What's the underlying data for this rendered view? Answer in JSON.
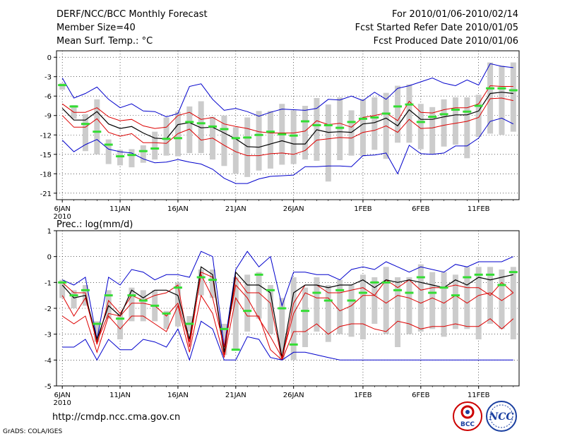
{
  "header": {
    "title": "DERF/NCC/BCC Monthly Forecast",
    "member_size": "Member Size=40",
    "variable": "Mean Surf. Temp.: °C",
    "period": "For 2010/01/06-2010/02/14",
    "fcst_started": "Fcst Started Refer Date 2010/01/05",
    "fcst_produced": "Fcst Produced Date 2010/01/06"
  },
  "footer": {
    "url": "http://cmdp.ncc.cma.gov.cn",
    "grads_credit": "GrADS: COLA/IGES",
    "logo_bcc_text": "BCC",
    "logo_ncc_text": "NCC"
  },
  "colors": {
    "envelope": "#0000cc",
    "spread": "#dd0000",
    "mean": "#000000",
    "observed": "#33dd33",
    "box": "#cccccc"
  },
  "chart_data": [
    {
      "type": "line",
      "title": "Mean Surf. Temp.: °C",
      "x_labels": [
        {
          "day": 1,
          "label": "6JAN"
        },
        {
          "day": 6,
          "label": "11JAN"
        },
        {
          "day": 11,
          "label": "16JAN"
        },
        {
          "day": 16,
          "label": "21JAN"
        },
        {
          "day": 21,
          "label": "26JAN"
        },
        {
          "day": 27,
          "label": "1FEB"
        },
        {
          "day": 32,
          "label": "6FEB"
        },
        {
          "day": 37,
          "label": "11FEB"
        }
      ],
      "year_label": "2010",
      "xlim": [
        0.5,
        40.5
      ],
      "ylim": [
        -22,
        1
      ],
      "yticks": [
        0,
        -3,
        -6,
        -9,
        -12,
        -15,
        -18,
        -21
      ],
      "ytick_labels": [
        "0",
        "-3",
        "-6",
        "-9",
        "-12",
        "-15",
        "-18",
        "-21"
      ],
      "series": [
        {
          "name": "max",
          "color_key": "envelope",
          "values": [
            -3.2,
            -6.3,
            -5.6,
            -4.6,
            -6.5,
            -7.8,
            -7.2,
            -8.3,
            -8.4,
            -9.2,
            -8.7,
            -4.5,
            -4.1,
            -6.5,
            -8.2,
            -7.9,
            -8.4,
            -9.1,
            -8.5,
            -8,
            -8.1,
            -8.2,
            -7.9,
            -6.5,
            -6.6,
            -6,
            -6.7,
            -5.4,
            -6.5,
            -4.8,
            -4.4,
            -3.8,
            -3.2,
            -4,
            -4.4,
            -3.5,
            -4.3,
            -1,
            -1.4,
            -1.6
          ]
        },
        {
          "name": "p_upper",
          "color_key": "spread",
          "values": [
            -7.2,
            -8.5,
            -8.5,
            -7.8,
            -9.2,
            -9.8,
            -9.6,
            -10.6,
            -11,
            -10.8,
            -9,
            -8.5,
            -9.6,
            -9.3,
            -10.3,
            -10.7,
            -11,
            -11.5,
            -11.7,
            -11.7,
            -11.7,
            -11.4,
            -9.8,
            -10.4,
            -10.2,
            -10.8,
            -9.3,
            -9,
            -8.6,
            -9.8,
            -6.8,
            -8.5,
            -8.6,
            -8.1,
            -7.8,
            -7.8,
            -7.2,
            -4.4,
            -4.5,
            -4.5
          ]
        },
        {
          "name": "mean",
          "color_key": "mean",
          "values": [
            -7.9,
            -9.7,
            -9.7,
            -8.4,
            -10.3,
            -11,
            -10.7,
            -11.7,
            -12.5,
            -12.6,
            -10.4,
            -10.1,
            -10.9,
            -10.8,
            -11.7,
            -12.6,
            -13.8,
            -13.9,
            -13.4,
            -12.9,
            -13.4,
            -13.4,
            -11.2,
            -11.6,
            -11.5,
            -11.6,
            -10.3,
            -10.1,
            -9.4,
            -10.6,
            -8.1,
            -9.6,
            -9.6,
            -9.2,
            -8.9,
            -8.9,
            -8.3,
            -5.6,
            -5.4,
            -5.6
          ]
        },
        {
          "name": "p_lower",
          "color_key": "spread",
          "values": [
            -9,
            -10.8,
            -10.8,
            -9.5,
            -11.6,
            -12.2,
            -11.8,
            -13.2,
            -13.2,
            -13.3,
            -11.8,
            -11.1,
            -12.8,
            -12.5,
            -13.6,
            -14.6,
            -15.2,
            -15.2,
            -14.9,
            -14.8,
            -15,
            -14.4,
            -12.8,
            -12.6,
            -12.4,
            -12.5,
            -11.6,
            -11.3,
            -10.6,
            -11.6,
            -9.6,
            -11,
            -10.9,
            -10.5,
            -10.2,
            -9.9,
            -9.3,
            -6.4,
            -6.3,
            -6.7
          ]
        },
        {
          "name": "min",
          "color_key": "envelope",
          "values": [
            -12.8,
            -14.6,
            -13.5,
            -12.7,
            -14.2,
            -14.6,
            -14.8,
            -15.7,
            -16.3,
            -16.2,
            -15.8,
            -16.2,
            -16.5,
            -17.3,
            -18.7,
            -19.5,
            -19.5,
            -18.8,
            -18.4,
            -18.3,
            -18.2,
            -16.9,
            -16.9,
            -16.8,
            -16.8,
            -16.9,
            -15.2,
            -15.1,
            -14.8,
            -18,
            -13.6,
            -14.9,
            -15,
            -14.8,
            -13.7,
            -13.7,
            -12.5,
            -9.9,
            -9.4,
            -10.3
          ]
        },
        {
          "name": "observed",
          "color_key": "observed",
          "values": [
            -4.3,
            -7.6,
            -10.3,
            -11.5,
            -13.5,
            -15.3,
            -15.1,
            -14.5,
            -14.1,
            -12.6,
            -12.5,
            -10,
            -10.2,
            -10.7,
            -11.1,
            -12.5,
            -12.4,
            -12,
            -11.5,
            -11.9,
            -12.1,
            -9.9,
            -10.5,
            -10.5,
            -10.9,
            -10,
            -9.5,
            -9.3,
            -8.7,
            -7.6,
            -7.3,
            -10,
            -9.2,
            -8.8,
            -8.1,
            -8.4,
            -7.5,
            -4.8,
            -4.8,
            -5.1
          ]
        }
      ],
      "boxes": {
        "low": [
          -5,
          -9.5,
          -14.5,
          -15,
          -16.5,
          -16.7,
          -17,
          -16.3,
          -15.8,
          -15.2,
          -15.3,
          -14.8,
          -14.8,
          -15.8,
          -16.8,
          -18,
          -18.5,
          -17.5,
          -17.2,
          -16.6,
          -16.5,
          -15.8,
          -16,
          -19.2,
          -15.9,
          -15.2,
          -15.3,
          -14.3,
          -15.7,
          -13.2,
          -13.2,
          -14.2,
          -15,
          -13.8,
          -13.5,
          -15.6,
          -12.3,
          -11.8,
          -12,
          -11.5
        ],
        "high": [
          -4,
          -7.4,
          -8.8,
          -6.5,
          -12.7,
          -14.3,
          -14.2,
          -13.6,
          -11.5,
          -9.3,
          -8.4,
          -7.6,
          -6.8,
          -9.2,
          -9,
          -10.8,
          -9.3,
          -8.3,
          -8.3,
          -7.2,
          -8.2,
          -7.5,
          -6.3,
          -7.3,
          -6.2,
          -8.2,
          -6.5,
          -6.2,
          -5.5,
          -4.4,
          -4.2,
          -7.2,
          -7.7,
          -6.5,
          -6.2,
          -6.2,
          -5.8,
          -0.8,
          -1.3,
          -0.8
        ]
      }
    },
    {
      "type": "line",
      "title": "Prec.: log(mm/d)",
      "x_labels": [
        {
          "day": 1,
          "label": "6JAN"
        },
        {
          "day": 6,
          "label": "11JAN"
        },
        {
          "day": 11,
          "label": "16JAN"
        },
        {
          "day": 16,
          "label": "21JAN"
        },
        {
          "day": 21,
          "label": "26JAN"
        },
        {
          "day": 27,
          "label": "1FEB"
        },
        {
          "day": 32,
          "label": "6FEB"
        },
        {
          "day": 37,
          "label": "11FEB"
        }
      ],
      "year_label": "2010",
      "xlim": [
        0.5,
        40.5
      ],
      "ylim": [
        -5,
        1
      ],
      "yticks": [
        1,
        0,
        -1,
        -2,
        -3,
        -4,
        -5
      ],
      "ytick_labels": [
        "1",
        "0",
        "-1",
        "-2",
        "-3",
        "-4",
        "-5"
      ],
      "series": [
        {
          "name": "max",
          "color_key": "envelope",
          "values": [
            -0.9,
            -1.1,
            -0.8,
            -3.2,
            -0.8,
            -1.1,
            -0.5,
            -0.6,
            -0.9,
            -0.7,
            -0.7,
            -0.8,
            0.2,
            0,
            -3.5,
            -0.5,
            0.2,
            -0.4,
            0,
            -1.9,
            -0.6,
            -0.6,
            -0.7,
            -0.7,
            -0.9,
            -0.5,
            -0.4,
            -0.5,
            -0.2,
            -0.4,
            -0.6,
            -0.4,
            -0.5,
            -0.6,
            -0.3,
            -0.4,
            -0.2,
            -0.2,
            -0.2,
            0
          ]
        },
        {
          "name": "p_upper",
          "color_key": "spread",
          "values": [
            -1,
            -1.4,
            -1.4,
            -3.4,
            -1.7,
            -2.2,
            -1.5,
            -1.7,
            -1.5,
            -1.4,
            -1.1,
            -3.5,
            -0.6,
            -0.8,
            -3.8,
            -0.8,
            -1.4,
            -1.4,
            -1.8,
            -4,
            -1.8,
            -1.1,
            -1.1,
            -1.4,
            -1.4,
            -1.3,
            -1.2,
            -1.5,
            -0.9,
            -1.2,
            -0.9,
            -1.3,
            -1.2,
            -1.2,
            -1.1,
            -1.2,
            -1.2,
            -1.5,
            -1,
            -1.4
          ]
        },
        {
          "name": "mean",
          "color_key": "mean",
          "values": [
            -1.1,
            -1.6,
            -1.5,
            -3.2,
            -1.9,
            -2.3,
            -1.3,
            -1.6,
            -1.3,
            -1.3,
            -1.5,
            -3.2,
            -0.4,
            -0.7,
            -3.7,
            -0.6,
            -1.1,
            -1.1,
            -1.4,
            -3.9,
            -1.4,
            -1.1,
            -1.1,
            -1.2,
            -1.1,
            -1.1,
            -0.9,
            -1.2,
            -0.9,
            -1,
            -0.9,
            -1,
            -1.1,
            -1.2,
            -0.9,
            -1.1,
            -0.8,
            -0.9,
            -0.8,
            -0.7
          ]
        },
        {
          "name": "p_lower",
          "color_key": "spread",
          "values": [
            -1.5,
            -2.3,
            -1.6,
            -3.3,
            -2.2,
            -2.3,
            -1.8,
            -1.8,
            -1.9,
            -2.3,
            -1.8,
            -3.3,
            -0.7,
            -1.6,
            -3.5,
            -1.1,
            -1.6,
            -2.4,
            -3.1,
            -3.9,
            -2.2,
            -1.4,
            -1.6,
            -1.6,
            -2.1,
            -1.9,
            -1.5,
            -1.5,
            -1.8,
            -1.5,
            -1.6,
            -1.8,
            -1.6,
            -1.8,
            -1.5,
            -1.8,
            -1.5,
            -1.4,
            -1.7,
            -1.4
          ]
        },
        {
          "name": "p_low",
          "color_key": "spread",
          "values": [
            -2.3,
            -2.6,
            -2.3,
            -3.7,
            -2.3,
            -2.8,
            -2.3,
            -2.3,
            -2.6,
            -2.9,
            -1.9,
            -3.7,
            -1.5,
            -2.2,
            -3.9,
            -1.6,
            -2.3,
            -2.3,
            -3.6,
            -4,
            -2.9,
            -2.9,
            -2.6,
            -3,
            -2.7,
            -2.6,
            -2.6,
            -2.8,
            -2.9,
            -2.5,
            -2.6,
            -2.8,
            -2.7,
            -2.7,
            -2.6,
            -2.7,
            -2.7,
            -2.4,
            -2.8,
            -2.4
          ]
        },
        {
          "name": "min",
          "color_key": "envelope",
          "values": [
            -3.5,
            -3.5,
            -3.2,
            -4,
            -3.2,
            -3.6,
            -3.6,
            -3.2,
            -3.3,
            -3.5,
            -2.8,
            -4,
            -2.5,
            -2.8,
            -4,
            -4,
            -3.1,
            -3.2,
            -3.9,
            -4,
            -3.7,
            -3.7,
            -3.8,
            -3.9,
            -4,
            -4,
            -4,
            -4,
            -4,
            -4,
            -4,
            -4,
            -4,
            -4,
            -4,
            -4,
            -4,
            -4,
            -4,
            -4
          ]
        },
        {
          "name": "observed",
          "color_key": "observed",
          "values": [
            -1,
            -1.5,
            -1.3,
            -2.6,
            -1.5,
            -2.4,
            -1.5,
            -1.7,
            -1.9,
            -2.2,
            -1.2,
            -2.6,
            -0.8,
            -0.9,
            -2.8,
            -3.6,
            -2.1,
            -0.7,
            -1.3,
            -2,
            -3.4,
            -2.1,
            -1.4,
            -1.7,
            -1.3,
            -1.7,
            -1.4,
            -1,
            -1,
            -1.3,
            -1.4,
            -0.8,
            -1.4,
            -1.2,
            -1.5,
            -0.8,
            -0.7,
            -0.7,
            -1.1,
            -0.6
          ]
        }
      ],
      "boxes": {
        "low": [
          -1.6,
          -2,
          -1.9,
          -3.3,
          -2.4,
          -3.2,
          -2.5,
          -2.5,
          -2.5,
          -2.8,
          -2.7,
          -2.9,
          -1.5,
          -1.6,
          -3.8,
          -3.6,
          -2.9,
          -2.4,
          -3,
          -4,
          -4,
          -3.5,
          -2.9,
          -3.3,
          -3,
          -3.1,
          -3.2,
          -2.6,
          -3,
          -3.5,
          -3,
          -2.9,
          -2.8,
          -3.1,
          -2.8,
          -2.8,
          -3.2,
          -2.6,
          -2.8,
          -3.2
        ],
        "high": [
          -0.9,
          -1.3,
          -1.1,
          -2.5,
          -1.3,
          -2.2,
          -1.2,
          -1.3,
          -1.3,
          -2.1,
          -1,
          -2.3,
          -0.5,
          -0.5,
          -2.6,
          -0.8,
          -0.7,
          -0.6,
          -1.1,
          -1.6,
          -0.8,
          -1.2,
          -0.8,
          -1.1,
          -0.9,
          -1.1,
          -0.7,
          -0.8,
          -0.4,
          -0.8,
          -0.8,
          -0.3,
          -0.6,
          -0.6,
          -0.7,
          -0.4,
          -0.4,
          -0.4,
          -0.5,
          -0.4
        ]
      }
    }
  ]
}
